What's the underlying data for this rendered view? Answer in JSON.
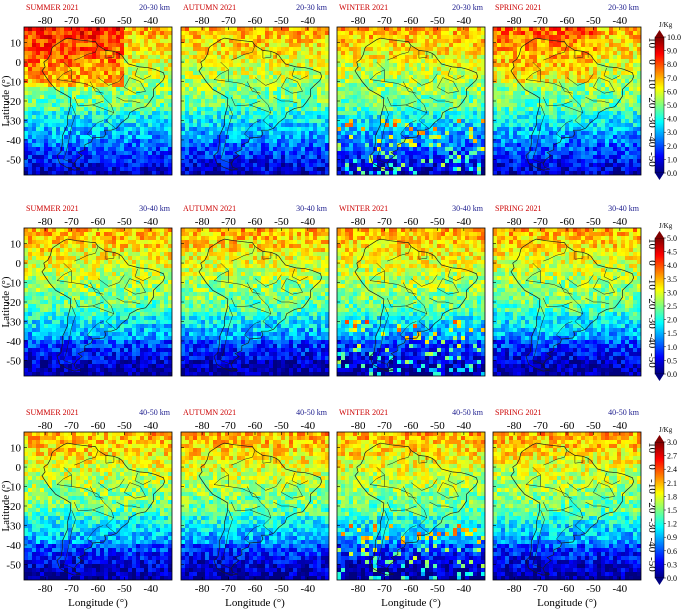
{
  "rows": [
    {
      "band": "20-30  km",
      "colorbar": {
        "unit": "J/Kg",
        "ticks": [
          "10.0",
          "9.0",
          "8.0",
          "7.0",
          "6.0",
          "5.0",
          "4.0",
          "3.0",
          "2.0",
          "1.0",
          "0.0"
        ]
      },
      "panels": [
        {
          "season": "SUMMER 2021",
          "band": "20-30  km"
        },
        {
          "season": "AUTUMN 2021",
          "band": "20-30  km"
        },
        {
          "season": "WINTER 2021",
          "band": "20-30  km"
        },
        {
          "season": "SPRING 2021",
          "band": "20-30  km"
        }
      ]
    },
    {
      "band": "30-40  km",
      "colorbar": {
        "unit": "J/Kg",
        "ticks": [
          "5.0",
          "4.5",
          "4.0",
          "3.5",
          "3.0",
          "2.5",
          "2.0",
          "1.5",
          "1.0",
          "0.5",
          "0.0"
        ]
      },
      "panels": [
        {
          "season": "SUMMER 2021",
          "band": "30-40  km"
        },
        {
          "season": "AUTUMN 2021",
          "band": "30-40  km"
        },
        {
          "season": "WINTER 2021",
          "band": "30-40  km"
        },
        {
          "season": "SPRING 2021",
          "band": "30-40  km"
        }
      ]
    },
    {
      "band": "40-50  km",
      "colorbar": {
        "unit": "J/Kg",
        "ticks": [
          "3.0",
          "2.7",
          "2.4",
          "2.1",
          "1.8",
          "1.5",
          "1.2",
          "0.9",
          "0.6",
          "0.3",
          "0.0"
        ]
      },
      "panels": [
        {
          "season": "SUMMER 2021",
          "band": "40-50  km"
        },
        {
          "season": "AUTUMN 2021",
          "band": "40-50  km"
        },
        {
          "season": "WINTER 2021",
          "band": "40-50  km"
        },
        {
          "season": "SPRING 2021",
          "band": "40-50  km"
        }
      ]
    }
  ],
  "axes": {
    "x_ticks": [
      "-80",
      "-70",
      "-60",
      "-50",
      "-40"
    ],
    "y_ticks": [
      "10",
      "0",
      "-10",
      "-20",
      "-30",
      "-40",
      "-50"
    ],
    "x_label": "Longitude (°)",
    "y_label": "Latitude (°)"
  },
  "colors": {
    "title": "#cc0000",
    "band": "#1a1a8c",
    "colormap": [
      "#00007f",
      "#0000ff",
      "#007fff",
      "#00ffff",
      "#7fff7f",
      "#ffff00",
      "#ff7f00",
      "#ff0000",
      "#7f0000"
    ]
  }
}
